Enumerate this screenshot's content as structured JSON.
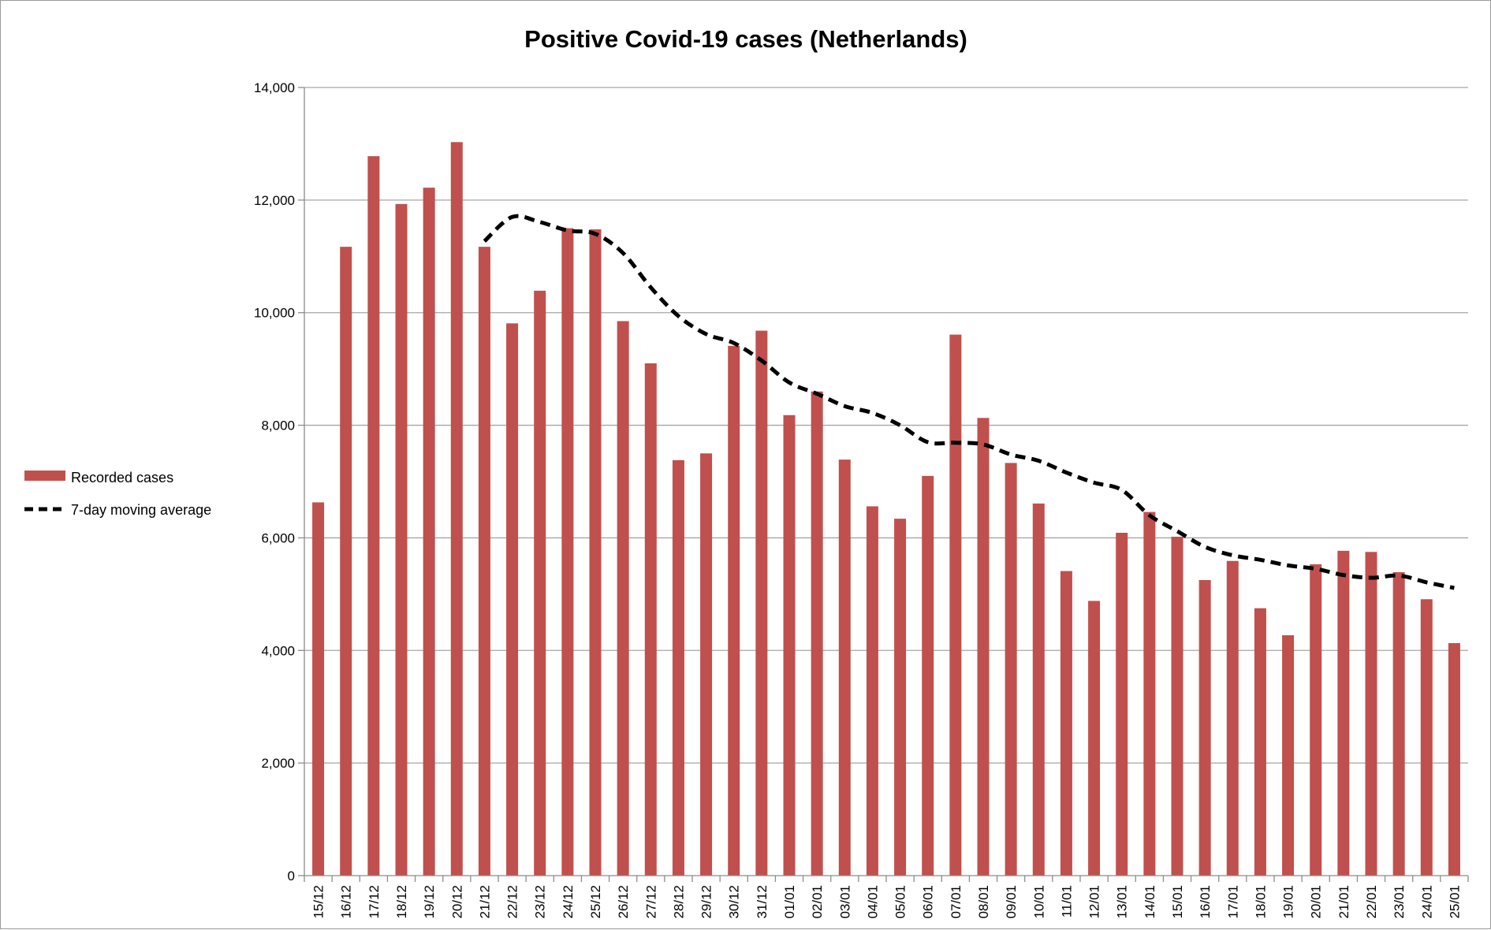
{
  "chart_data": {
    "type": "bar",
    "title": "Positive Covid-19 cases (Netherlands)",
    "xlabel": "",
    "ylabel": "",
    "ylim": [
      0,
      14000
    ],
    "yticks": [
      0,
      2000,
      4000,
      6000,
      8000,
      10000,
      12000,
      14000
    ],
    "ytick_labels": [
      "0",
      "2,000",
      "4,000",
      "6,000",
      "8,000",
      "10,000",
      "12,000",
      "14,000"
    ],
    "grid": "horizontal",
    "legend_position": "left",
    "categories": [
      "15/12",
      "16/12",
      "17/12",
      "18/12",
      "19/12",
      "20/12",
      "21/12",
      "22/12",
      "23/12",
      "24/12",
      "25/12",
      "26/12",
      "27/12",
      "28/12",
      "29/12",
      "30/12",
      "31/12",
      "01/01",
      "02/01",
      "03/01",
      "04/01",
      "05/01",
      "06/01",
      "07/01",
      "08/01",
      "09/01",
      "10/01",
      "11/01",
      "12/01",
      "13/01",
      "14/01",
      "15/01",
      "16/01",
      "17/01",
      "18/01",
      "19/01",
      "20/01",
      "21/01",
      "22/01",
      "23/01",
      "24/01",
      "25/01"
    ],
    "series": [
      {
        "name": "Recorded cases",
        "type": "bar",
        "color": "#c0504d",
        "values": [
          6630,
          11170,
          12780,
          11930,
          12220,
          13030,
          11170,
          9810,
          10390,
          11500,
          11480,
          9850,
          9100,
          7380,
          7500,
          9410,
          9680,
          8180,
          8600,
          7390,
          6560,
          6340,
          7100,
          9610,
          8130,
          7330,
          6610,
          5410,
          4880,
          6090,
          6460,
          6020,
          5250,
          5590,
          4750,
          4270,
          5530,
          5770,
          5750,
          5390,
          4910,
          4130
        ]
      },
      {
        "name": "7-day moving average",
        "type": "line",
        "style": "dashed",
        "color": "#000000",
        "values": [
          null,
          null,
          null,
          null,
          null,
          null,
          11270,
          11700,
          11610,
          11460,
          11400,
          11060,
          10450,
          9940,
          9620,
          9460,
          9150,
          8760,
          8560,
          8340,
          8220,
          8000,
          7700,
          7690,
          7660,
          7480,
          7370,
          7160,
          6980,
          6850,
          6400,
          6120,
          5840,
          5690,
          5610,
          5510,
          5450,
          5340,
          5290,
          5330,
          5210,
          5110
        ]
      }
    ]
  }
}
